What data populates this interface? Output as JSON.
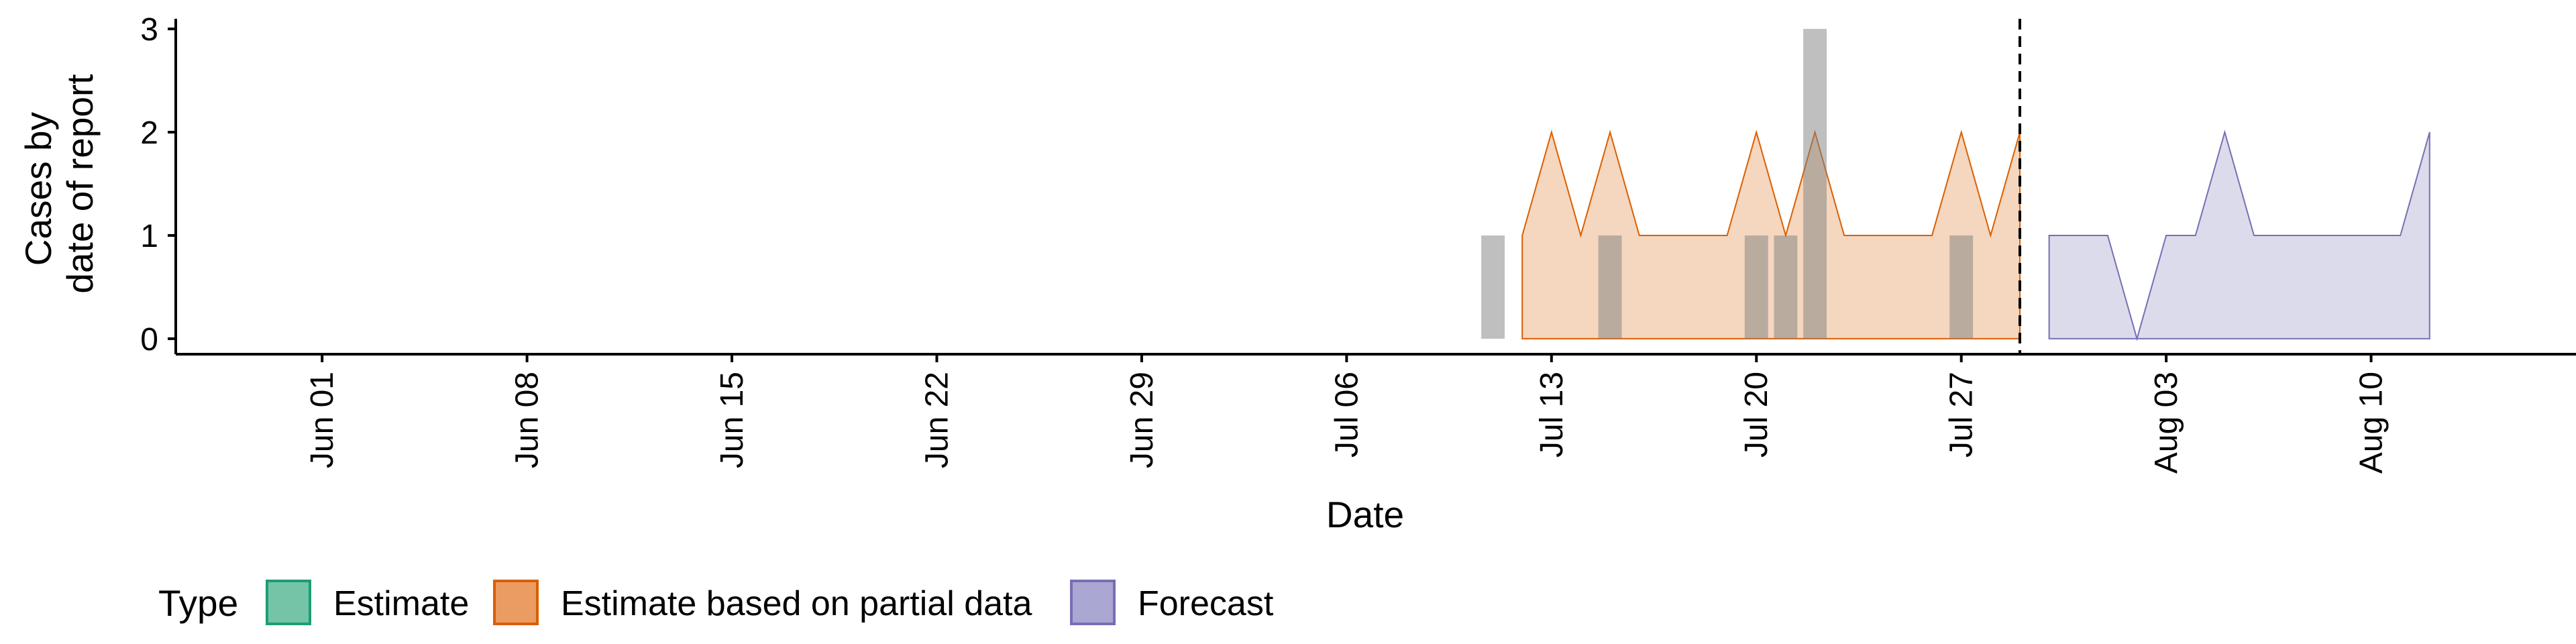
{
  "chart_data": {
    "type": "area",
    "xlabel": "Date",
    "ylabel_lines": [
      "Cases by",
      "date of report"
    ],
    "y_ticks": [
      0,
      1,
      2,
      3
    ],
    "x_ticks": [
      {
        "date": "2020-06-01",
        "label": "Jun 01"
      },
      {
        "date": "2020-06-08",
        "label": "Jun 08"
      },
      {
        "date": "2020-06-15",
        "label": "Jun 15"
      },
      {
        "date": "2020-06-22",
        "label": "Jun 22"
      },
      {
        "date": "2020-06-29",
        "label": "Jun 29"
      },
      {
        "date": "2020-07-06",
        "label": "Jul 06"
      },
      {
        "date": "2020-07-13",
        "label": "Jul 13"
      },
      {
        "date": "2020-07-20",
        "label": "Jul 20"
      },
      {
        "date": "2020-07-27",
        "label": "Jul 27"
      },
      {
        "date": "2020-08-03",
        "label": "Aug 03"
      },
      {
        "date": "2020-08-10",
        "label": "Aug 10"
      }
    ],
    "x_range": [
      "2020-05-27",
      "2020-08-17"
    ],
    "y_range": [
      -0.15,
      3.15
    ],
    "grid": false,
    "observed_cases": [
      {
        "date": "2020-07-11",
        "value": 1
      },
      {
        "date": "2020-07-15",
        "value": 1
      },
      {
        "date": "2020-07-20",
        "value": 1
      },
      {
        "date": "2020-07-21",
        "value": 1
      },
      {
        "date": "2020-07-22",
        "value": 3
      },
      {
        "date": "2020-07-27",
        "value": 1
      }
    ],
    "series": [
      {
        "name": "Estimate based on partial data",
        "color": "#d95f02",
        "fill": "#f5d6be",
        "x": [
          "2020-07-12",
          "2020-07-13",
          "2020-07-14",
          "2020-07-15",
          "2020-07-16",
          "2020-07-17",
          "2020-07-18",
          "2020-07-19",
          "2020-07-20",
          "2020-07-21",
          "2020-07-22",
          "2020-07-23",
          "2020-07-24",
          "2020-07-25",
          "2020-07-26",
          "2020-07-27",
          "2020-07-28",
          "2020-07-29"
        ],
        "upper": [
          1,
          2,
          1,
          2,
          1,
          1,
          1,
          1,
          2,
          1,
          2,
          1,
          1,
          1,
          1,
          2,
          1,
          2
        ],
        "lower": [
          0,
          0,
          0,
          0,
          0,
          0,
          0,
          0,
          0,
          0,
          0,
          0,
          0,
          0,
          0,
          0,
          0,
          0
        ]
      },
      {
        "name": "Forecast",
        "color": "#7570b3",
        "fill": "#dcdbeb",
        "x": [
          "2020-07-30",
          "2020-07-31",
          "2020-08-01",
          "2020-08-02",
          "2020-08-03",
          "2020-08-04",
          "2020-08-05",
          "2020-08-06",
          "2020-08-07",
          "2020-08-08",
          "2020-08-09",
          "2020-08-10",
          "2020-08-11",
          "2020-08-12"
        ],
        "upper": [
          1,
          1,
          1,
          0,
          1,
          1,
          2,
          1,
          1,
          1,
          1,
          1,
          1,
          2
        ],
        "lower": [
          0,
          0,
          0,
          0,
          0,
          0,
          0,
          0,
          0,
          0,
          0,
          0,
          0,
          0
        ]
      }
    ],
    "forecast_divider_date": "2020-07-29",
    "legend": {
      "title": "Type",
      "position": "bottom",
      "items": [
        {
          "label": "Estimate",
          "fill": "#76c4a8",
          "border": "#1b9e77"
        },
        {
          "label": "Estimate based on partial data",
          "fill": "#eb9c62",
          "border": "#d95f02"
        },
        {
          "label": "Forecast",
          "fill": "#aaa7d2",
          "border": "#7570b3"
        }
      ]
    }
  }
}
